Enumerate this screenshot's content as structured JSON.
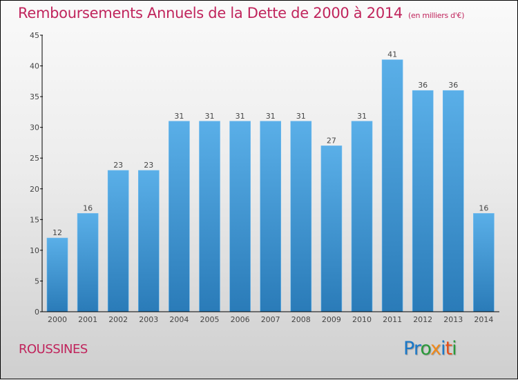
{
  "header": {
    "title": "Remboursements Annuels de la Dette de 2000 à 2014",
    "subtitle": "(en milliers d'€)"
  },
  "footer": {
    "commune": "ROUSSINES",
    "logo": {
      "letters": [
        "P",
        "r",
        "o",
        "x",
        "i",
        "t",
        "i"
      ],
      "colors": [
        "#1a78c8",
        "#1a78c8",
        "#2a9a3a",
        "#f08a1a",
        "#1a78c8",
        "#e8501a",
        "#2a9a3a"
      ]
    }
  },
  "colors": {
    "bar_top": "#5aafe8",
    "bar_bottom": "#2a7bb8",
    "title": "#c0245c"
  },
  "chart_data": {
    "type": "bar",
    "title": "Remboursements Annuels de la Dette de 2000 à 2014 (en milliers d'€)",
    "xlabel": "",
    "ylabel": "",
    "categories": [
      "2000",
      "2001",
      "2002",
      "2003",
      "2004",
      "2005",
      "2006",
      "2007",
      "2008",
      "2009",
      "2010",
      "2011",
      "2012",
      "2013",
      "2014"
    ],
    "values": [
      12,
      16,
      23,
      23,
      31,
      31,
      31,
      31,
      31,
      27,
      31,
      41,
      36,
      36,
      16
    ],
    "ylim": [
      0,
      45
    ],
    "yticks": [
      0,
      5,
      10,
      15,
      20,
      25,
      30,
      35,
      40,
      45
    ],
    "grid": false,
    "legend": "none",
    "data_labels": true
  }
}
